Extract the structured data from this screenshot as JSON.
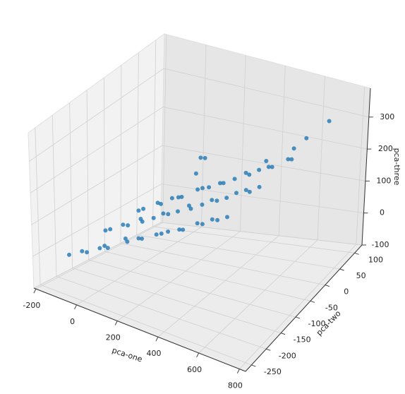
{
  "chart_data": {
    "type": "scatter3d",
    "x_label": "pca-one",
    "y_label": "pca-two",
    "z_label": "pca-three",
    "color": "#1f77b4",
    "xlim": [
      -210,
      830
    ],
    "ylim": [
      -270,
      125
    ],
    "zlim": [
      -100,
      390
    ],
    "xticks": [
      -200,
      0,
      200,
      400,
      600,
      800
    ],
    "yticks": [
      -250,
      -200,
      -150,
      -100,
      -50,
      0,
      50,
      100
    ],
    "zticks": [
      -100,
      0,
      100,
      200,
      300
    ],
    "grid": true,
    "x": [
      -160,
      -120,
      -80,
      -40,
      0,
      40,
      80,
      120,
      160,
      200,
      240,
      280,
      320,
      360,
      400,
      440,
      480,
      520,
      560,
      600,
      -140,
      -100,
      -60,
      -20,
      20,
      60,
      100,
      140,
      180,
      220,
      260,
      300,
      340,
      380,
      420,
      460,
      500,
      540,
      580,
      620,
      -120,
      -80,
      -40,
      0,
      40,
      80,
      120,
      160,
      200,
      240,
      280,
      320,
      360,
      400,
      440,
      480,
      520,
      560,
      600,
      640,
      220,
      230,
      210,
      700,
      650,
      620,
      560
    ],
    "y": [
      -190,
      -175,
      -185,
      -170,
      -180,
      -195,
      -165,
      -185,
      -175,
      -190,
      -170,
      -180,
      -185,
      -175,
      -190,
      -170,
      -180,
      -175,
      -185,
      -180,
      -90,
      -100,
      -85,
      -95,
      -80,
      -100,
      -90,
      -85,
      -95,
      -90,
      -80,
      -100,
      -90,
      -85,
      -95,
      -90,
      -85,
      -80,
      -95,
      -90,
      0,
      -10,
      10,
      -5,
      5,
      0,
      -15,
      10,
      0,
      -5,
      5,
      -10,
      0,
      10,
      -5,
      0,
      5,
      -10,
      15,
      0,
      -20,
      -40,
      0,
      80,
      40,
      20,
      -30
    ],
    "z": [
      -30,
      -20,
      -10,
      0,
      20,
      30,
      45,
      55,
      65,
      80,
      85,
      100,
      115,
      120,
      135,
      145,
      155,
      170,
      180,
      190,
      -10,
      5,
      15,
      25,
      40,
      50,
      60,
      75,
      85,
      95,
      110,
      120,
      130,
      145,
      155,
      165,
      180,
      190,
      200,
      215,
      0,
      15,
      25,
      35,
      50,
      60,
      75,
      85,
      100,
      110,
      120,
      135,
      145,
      160,
      170,
      185,
      195,
      210,
      220,
      235,
      200,
      170,
      185,
      300,
      270,
      250,
      240
    ]
  }
}
